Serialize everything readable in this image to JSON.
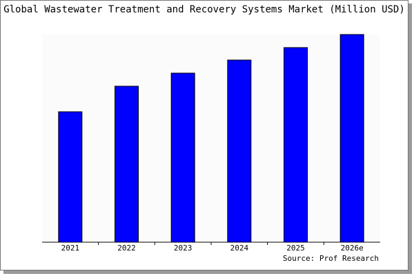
{
  "chart_data": {
    "type": "bar",
    "title": "Global Wastewater Treatment and Recovery Systems Market (Million USD)",
    "categories": [
      "2021",
      "2022",
      "2023",
      "2024",
      "2025",
      "2026e"
    ],
    "values": [
      62.8,
      75.1,
      81.4,
      87.7,
      93.7,
      100
    ],
    "color": "#0000ff",
    "ylim": [
      0,
      100
    ],
    "source": "Source: Prof Research"
  }
}
